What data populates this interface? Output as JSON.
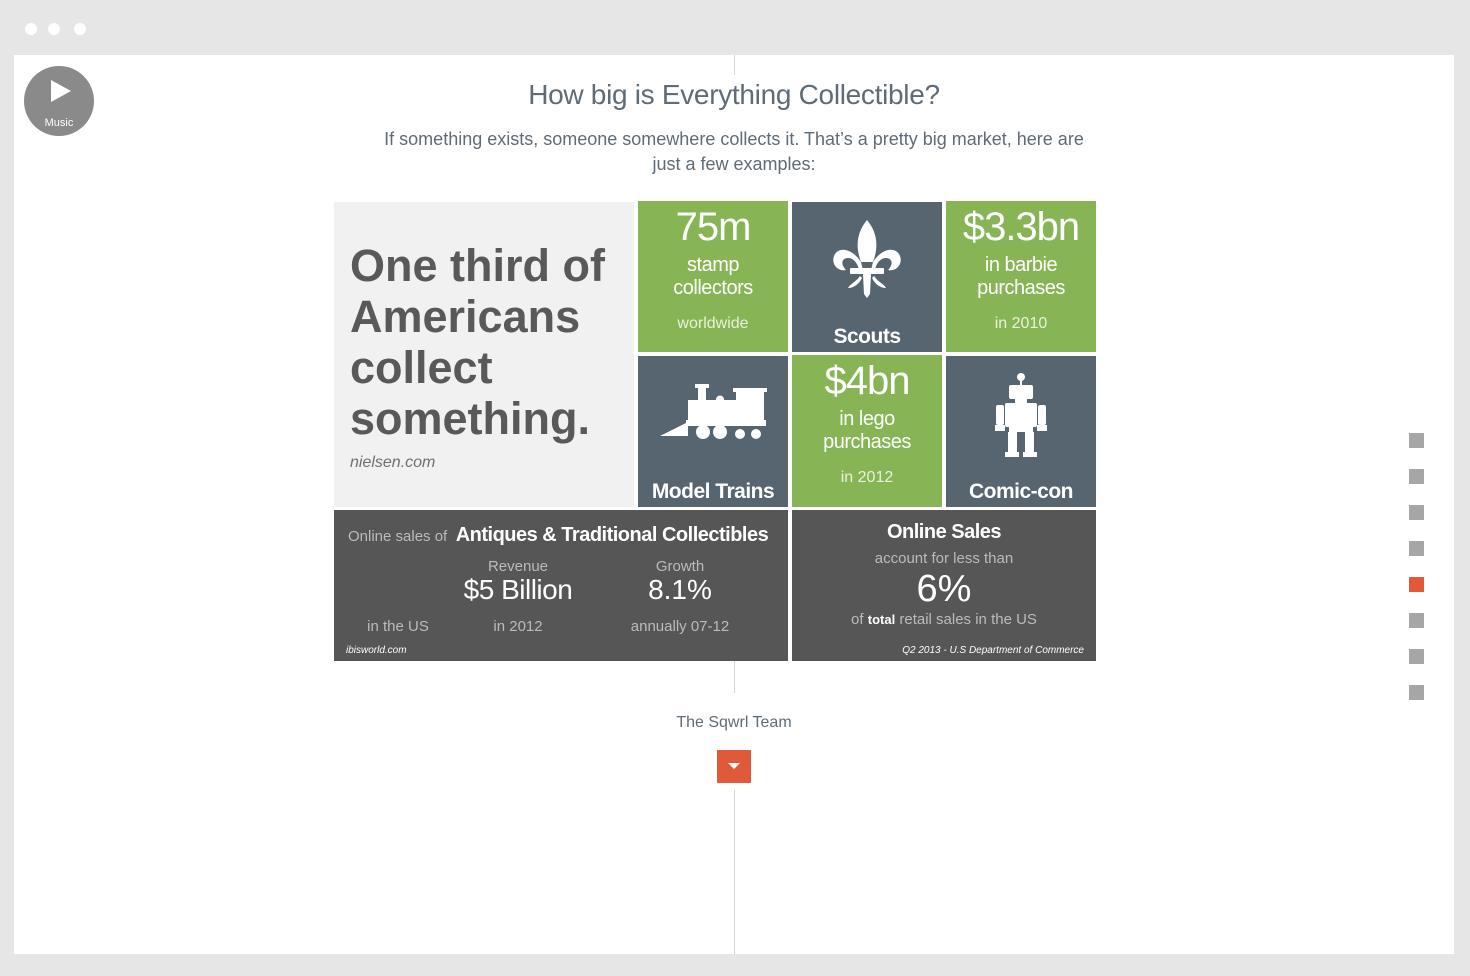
{
  "window": {
    "controls": [
      "close",
      "minimize",
      "maximize"
    ]
  },
  "music": {
    "label": "Music",
    "icon": "play-icon"
  },
  "header": {
    "title": "How big is Everything Collectible?",
    "subtitle_line1": "If something exists, someone somewhere collects it. That’s a pretty big market, here are",
    "subtitle_line2": "just a few examples:"
  },
  "tiles": {
    "quote": {
      "text_lines": [
        "One third of",
        "Americans",
        "collect",
        "something."
      ],
      "source": "nielsen.com"
    },
    "stamps": {
      "number": "75m",
      "line1": "stamp",
      "line2": "collectors",
      "note": "worldwide"
    },
    "scouts": {
      "label": "Scouts",
      "icon": "fleur-de-lis-icon"
    },
    "barbie": {
      "number": "$3.3bn",
      "line1": "in barbie",
      "line2": "purchases",
      "note": "in 2010"
    },
    "trains": {
      "label": "Model Trains",
      "icon": "train-icon"
    },
    "lego": {
      "number": "$4bn",
      "line1": "in lego",
      "line2": "purchases",
      "note": "in 2012"
    },
    "comiccon": {
      "label": "Comic-con",
      "icon": "robot-icon"
    },
    "antiques": {
      "prefix": "Online sales of",
      "title": "Antiques & Traditional Collectibles",
      "revenue_label": "Revenue",
      "revenue_value": "$5 Billion",
      "growth_label": "Growth",
      "growth_value": "8.1%",
      "region": "in the US",
      "year": "in 2012",
      "period": "annually 07-12",
      "source": "ibisworld.com"
    },
    "online": {
      "title": "Online Sales",
      "line1": "account for less than",
      "value": "6%",
      "pre": "of",
      "bold": "total",
      "post": "retail sales in the US",
      "source": "Q2 2013 - U.S Department of Commerce"
    }
  },
  "pager": {
    "count": 8,
    "active_index": 4,
    "active_color": "#e05a39",
    "inactive_color": "#a6a6a6"
  },
  "footer": {
    "team": "The Sqwrl Team",
    "down_icon": "chevron-down-icon"
  },
  "colors": {
    "green": "#87b455",
    "slate": "#56656f",
    "dark": "#565656",
    "accent": "#e05a39"
  }
}
